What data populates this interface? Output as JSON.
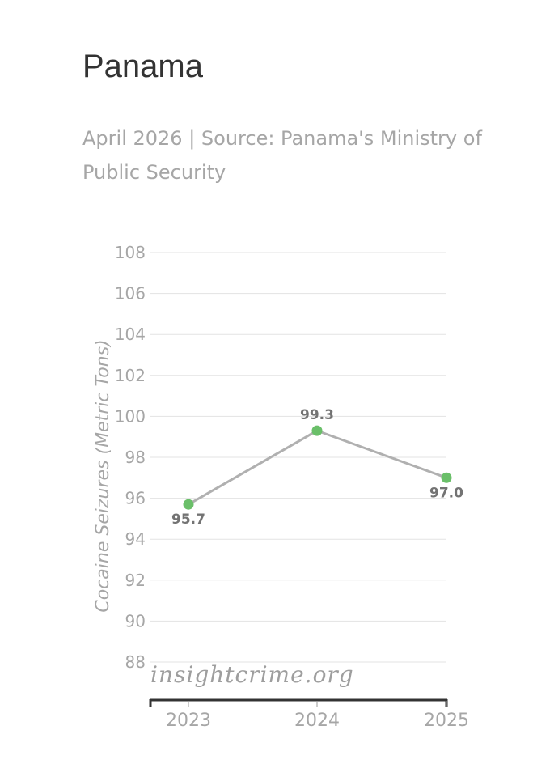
{
  "header": {
    "title": "Panama",
    "subtitle": "April 2026 | Source: Panama's Ministry of Public Security"
  },
  "watermark": "insightcrime.org",
  "colors": {
    "line": "#b0b0b0",
    "marker": "#6abf69",
    "grid": "#e3e3e3",
    "axis": "#333333"
  },
  "chart_data": {
    "type": "line",
    "x": [
      "2023",
      "2024",
      "2025"
    ],
    "series": [
      {
        "values": [
          95.7,
          99.3,
          97.0
        ],
        "labels": [
          "95.7",
          "99.3",
          "97.0"
        ]
      }
    ],
    "ylabel": "Cocaine Seizures (Metric Tons)",
    "xlabel": "",
    "ylim": [
      88,
      108
    ],
    "yticks": [
      88,
      90,
      92,
      94,
      96,
      98,
      100,
      102,
      104,
      106,
      108
    ],
    "grid": true,
    "legend": "none"
  }
}
